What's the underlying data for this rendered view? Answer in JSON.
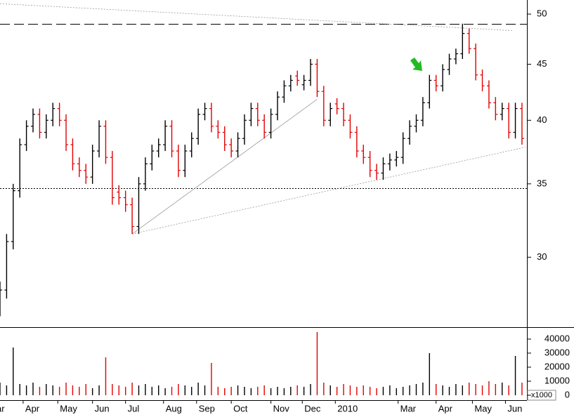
{
  "chart_data": [
    {
      "type": "ohlc",
      "log_scale": true,
      "up_color": "#000000",
      "down_color": "#e00000",
      "xlim": [
        0,
        319
      ],
      "ylim": [
        25.9,
        51.5
      ],
      "yticks": [
        30,
        35,
        40,
        45,
        50
      ],
      "x": [
        0,
        4,
        8,
        12,
        16,
        20,
        24,
        28,
        32,
        36,
        40,
        44,
        48,
        52,
        56,
        60,
        64,
        68,
        72,
        76,
        80,
        84,
        88,
        92,
        96,
        100,
        104,
        108,
        112,
        116,
        120,
        124,
        128,
        132,
        136,
        140,
        144,
        148,
        152,
        156,
        160,
        164,
        168,
        172,
        176,
        180,
        184,
        188,
        192,
        196,
        200,
        204,
        208,
        212,
        216,
        220,
        224,
        228,
        232,
        236,
        240,
        244,
        248,
        252,
        256,
        260,
        264,
        268,
        272,
        276,
        280,
        284,
        288,
        292,
        296,
        300,
        304,
        308,
        312,
        316
      ],
      "open": [
        27,
        28,
        31,
        34.5,
        38,
        39.5,
        40.5,
        39,
        40,
        41,
        40,
        38,
        36.5,
        36,
        35.5,
        37.5,
        39.5,
        37,
        34.4,
        34,
        33.5,
        32,
        35,
        36.5,
        37.5,
        38,
        39.5,
        37.5,
        36,
        37.5,
        38.5,
        40.5,
        41,
        39.5,
        39,
        38,
        37.5,
        38.5,
        40,
        41,
        40,
        39,
        40.5,
        42,
        43,
        43.9,
        43.1,
        43.5,
        45,
        42.5,
        40,
        41.4,
        41,
        40,
        39,
        37.5,
        37,
        36,
        35.8,
        36.5,
        36.8,
        37,
        38.5,
        39.5,
        40,
        41.5,
        43.5,
        43,
        44.5,
        45.5,
        46,
        48,
        46.5,
        44,
        43,
        41.5,
        40.5,
        41,
        39,
        41
      ],
      "high": [
        28.5,
        31.5,
        35,
        38.5,
        40,
        41,
        41,
        40.5,
        41.5,
        41.5,
        40.5,
        38.5,
        37,
        36.5,
        38,
        40,
        40,
        37.5,
        34.9,
        34.5,
        34,
        35.5,
        37,
        38,
        38.5,
        40,
        40,
        38,
        38,
        39,
        41,
        41.5,
        41.5,
        40,
        39.5,
        38.5,
        39,
        40.5,
        41.5,
        41.5,
        40.5,
        41,
        42.5,
        43.5,
        44,
        44.4,
        44,
        45.5,
        45.5,
        43,
        41.5,
        41.9,
        41.5,
        40.5,
        39.5,
        38,
        37.5,
        36.5,
        37,
        37.3,
        37.5,
        39,
        40,
        40.5,
        42,
        44,
        44,
        45,
        46,
        46.5,
        49,
        48.5,
        47,
        44.5,
        43.5,
        42,
        41.5,
        41.5,
        41.5,
        41.5
      ],
      "low": [
        26.5,
        27.5,
        30.5,
        34,
        37.5,
        39,
        38.5,
        38.5,
        39.5,
        39.5,
        37.5,
        36,
        35.5,
        35,
        35,
        37,
        36.5,
        33.5,
        33.5,
        33,
        31.5,
        31.5,
        34.5,
        36,
        37,
        37.5,
        37,
        35.5,
        35.5,
        37,
        38,
        40,
        39,
        38.5,
        37.5,
        37,
        37,
        38,
        39.5,
        39.5,
        38.5,
        38.5,
        40,
        41.5,
        42.5,
        43,
        42.6,
        43,
        42,
        39.5,
        39.5,
        40.5,
        39.5,
        38.5,
        37,
        36.5,
        35.5,
        35.3,
        35.3,
        36,
        36.3,
        36.5,
        38,
        39,
        39.5,
        41,
        42.5,
        42.5,
        44,
        45,
        45.5,
        46,
        43.5,
        42.5,
        41,
        40,
        40,
        38.5,
        38.5,
        38
      ],
      "close": [
        28,
        31,
        34.5,
        38,
        39.5,
        40.5,
        39,
        40,
        41,
        40,
        38,
        36.5,
        36,
        35.5,
        37.5,
        39.5,
        37,
        34,
        34,
        33.5,
        32,
        35,
        36.5,
        37.5,
        38,
        39.5,
        37.5,
        36,
        37.5,
        38.5,
        40.5,
        41,
        39.5,
        39,
        38,
        37.5,
        38.5,
        40,
        41,
        40,
        39,
        40.5,
        42,
        43,
        43.5,
        43.5,
        43.5,
        45,
        42.5,
        40,
        41,
        41,
        40,
        39,
        37.5,
        37,
        36,
        35.8,
        36.5,
        36.8,
        37,
        38.5,
        39.5,
        40,
        41.5,
        43.5,
        43,
        44.5,
        45.5,
        46,
        48,
        46.5,
        44,
        43,
        41.5,
        40.5,
        41,
        39,
        41,
        38.5
      ],
      "hlines": [
        {
          "value": 49,
          "style": "dashed"
        },
        {
          "value": 34.7,
          "style": "dotted"
        }
      ],
      "trendlines": [
        {
          "x": [
            0,
            310
          ],
          "y": [
            51.1,
            48.3
          ],
          "style": "dotted"
        },
        {
          "x": [
            80,
            192
          ],
          "y": [
            31.5,
            41.8
          ],
          "style": "solid"
        },
        {
          "x": [
            80,
            318
          ],
          "y": [
            31.5,
            37.8
          ],
          "style": "dotted"
        }
      ]
    },
    {
      "type": "bar",
      "xlim": [
        0,
        319
      ],
      "ylim": [
        0,
        48000
      ],
      "yticks": [
        0,
        10000,
        20000,
        30000,
        40000
      ],
      "unit_label": "x1000",
      "x": [
        0,
        4,
        8,
        12,
        16,
        20,
        24,
        28,
        32,
        36,
        40,
        44,
        48,
        52,
        56,
        60,
        64,
        68,
        72,
        76,
        80,
        84,
        88,
        92,
        96,
        100,
        104,
        108,
        112,
        116,
        120,
        124,
        128,
        132,
        136,
        140,
        144,
        148,
        152,
        156,
        160,
        164,
        168,
        172,
        176,
        180,
        184,
        188,
        192,
        196,
        200,
        204,
        208,
        212,
        216,
        220,
        224,
        228,
        232,
        236,
        240,
        244,
        248,
        252,
        256,
        260,
        264,
        268,
        272,
        276,
        280,
        284,
        288,
        292,
        296,
        300,
        304,
        308,
        312,
        316
      ],
      "values": [
        9000,
        7000,
        34000,
        8000,
        7000,
        9000,
        6000,
        8000,
        7000,
        6000,
        9000,
        7000,
        6000,
        8000,
        5000,
        7000,
        27000,
        8000,
        7000,
        6000,
        9000,
        7000,
        8000,
        6000,
        7000,
        5000,
        6000,
        8000,
        7000,
        6000,
        9000,
        7000,
        23000,
        6000,
        5000,
        6000,
        7000,
        6000,
        5000,
        6000,
        7000,
        5000,
        6000,
        5000,
        6000,
        7000,
        6000,
        8000,
        45000,
        9000,
        7000,
        6000,
        8000,
        7000,
        6000,
        7000,
        6000,
        5000,
        6000,
        7000,
        5000,
        6000,
        7000,
        8000,
        9000,
        30000,
        8000,
        7000,
        6000,
        8000,
        7000,
        9000,
        8000,
        7000,
        10000,
        8000,
        9000,
        7000,
        28000,
        9000
      ],
      "xticks": [
        {
          "value": -8,
          "label": "Mar"
        },
        {
          "value": 14,
          "label": "Apr"
        },
        {
          "value": 35,
          "label": "May"
        },
        {
          "value": 56,
          "label": "Jun"
        },
        {
          "value": 76,
          "label": "Jul"
        },
        {
          "value": 99,
          "label": "Aug"
        },
        {
          "value": 119,
          "label": "Sep"
        },
        {
          "value": 140,
          "label": "Oct"
        },
        {
          "value": 164,
          "label": "Nov"
        },
        {
          "value": 183,
          "label": "Dec"
        },
        {
          "value": 203,
          "label": "2010"
        },
        {
          "value": 241,
          "label": "Mar"
        },
        {
          "value": 264,
          "label": "Apr"
        },
        {
          "value": 286,
          "label": "May"
        },
        {
          "value": 306,
          "label": "Jun"
        }
      ]
    }
  ]
}
